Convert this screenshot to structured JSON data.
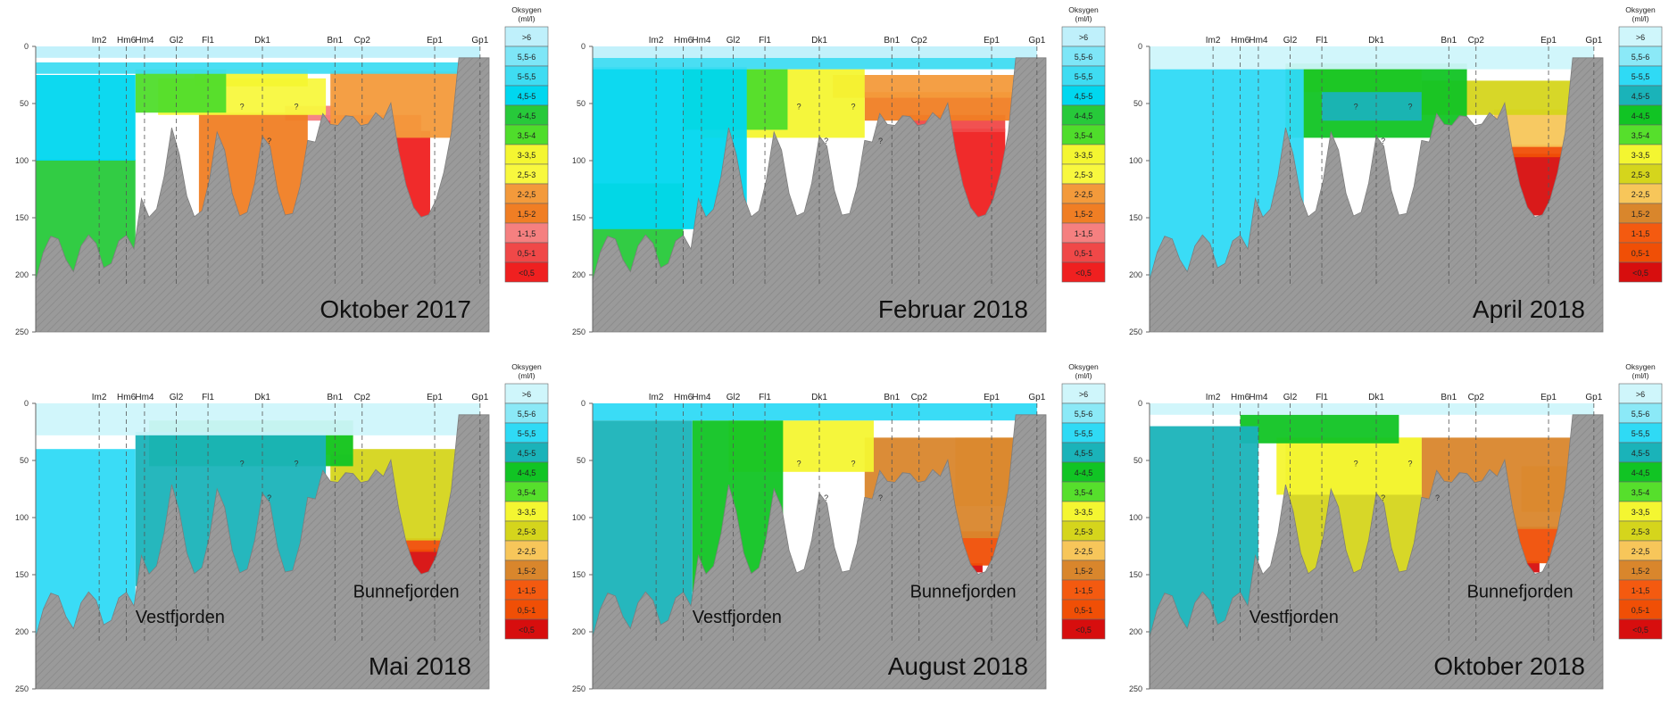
{
  "chart_data": [
    {
      "type": "other",
      "title": "Oktober 2017",
      "ylim": [
        0,
        250
      ],
      "y_ticks": [
        0,
        50,
        100,
        150,
        200,
        250
      ],
      "stations": [
        "Im2",
        "Hm6",
        "Hm4",
        "Gl2",
        "Fl1",
        "Dk1",
        "Bn1",
        "Cp2",
        "Ep1",
        "Gp1"
      ],
      "station_pos": [
        0.14,
        0.2,
        0.24,
        0.31,
        0.38,
        0.5,
        0.66,
        0.72,
        0.88,
        0.98
      ],
      "scale_lightblue": true,
      "legend_title": "Oksygen\n(ml/l)",
      "legend_classes": [
        ">6",
        "5,5-6",
        "5-5,5",
        "4,5-5",
        "4-4,5",
        "3,5-4",
        "3-3,5",
        "2,5-3",
        "2-2,5",
        "1,5-2",
        "1-1,5",
        "0,5-1",
        "<0,5"
      ],
      "legend_colors": [
        "#bff0fb",
        "#7ee6f7",
        "#3fdcf2",
        "#00d7ef",
        "#27c93a",
        "#4fdd2b",
        "#f4f631",
        "#f8f83e",
        "#f39a3b",
        "#f07e24",
        "#f58080",
        "#f04848",
        "#ef2020"
      ],
      "regions": [
        {
          "code": "<0,5",
          "x0": 0.67,
          "x1": 0.87,
          "y0": 74,
          "y1": 152,
          "color": "#ef2020"
        },
        {
          "code": "0,5-1",
          "x0": 0.64,
          "x1": 0.85,
          "y0": 60,
          "y1": 80,
          "color": "#f04848"
        },
        {
          "code": "1-1,5",
          "x0": 0.55,
          "x1": 0.66,
          "y0": 52,
          "y1": 65,
          "color": "#f58080"
        },
        {
          "code": "1,5-2",
          "x0": 0.36,
          "x1": 0.6,
          "y0": 58,
          "y1": 155,
          "color": "#f07e24"
        },
        {
          "code": "2-2,5",
          "x0": 0.65,
          "x1": 0.97,
          "y0": 22,
          "y1": 80,
          "color": "#f39a3b"
        },
        {
          "code": "2,5-3",
          "x0": 0.27,
          "x1": 0.64,
          "y0": 28,
          "y1": 60,
          "color": "#f8f83e"
        },
        {
          "code": "3-3,5",
          "x0": 0.35,
          "x1": 0.6,
          "y0": 20,
          "y1": 35,
          "color": "#f4f631"
        },
        {
          "code": "3,5-4",
          "x0": 0.22,
          "x1": 0.42,
          "y0": 20,
          "y1": 58,
          "color": "#4fdd2b"
        },
        {
          "code": "4-4,5",
          "x0": 0.0,
          "x1": 0.22,
          "y0": 99,
          "y1": 205,
          "color": "#27c93a"
        },
        {
          "code": "4,5-5",
          "x0": 0.0,
          "x1": 0.22,
          "y0": 25,
          "y1": 100,
          "color": "#00d7ef"
        },
        {
          "code": "5-5,5",
          "x0": 0.0,
          "x1": 0.98,
          "y0": 14,
          "y1": 24,
          "color": "#3fdcf2"
        },
        {
          "code": ">6",
          "x0": 0.0,
          "x1": 0.98,
          "y0": 0,
          "y1": 10,
          "color": "#bff0fb"
        }
      ],
      "question_marks": 3,
      "subtitles": []
    },
    {
      "type": "other",
      "title": "Februar 2018",
      "ylim": [
        0,
        250
      ],
      "y_ticks": [
        0,
        50,
        100,
        150,
        200,
        250
      ],
      "stations": [
        "Im2",
        "Hm6",
        "Hm4",
        "Gl2",
        "Fl1",
        "Dk1",
        "Bn1",
        "Cp2",
        "Ep1",
        "Gp1"
      ],
      "station_pos": [
        0.14,
        0.2,
        0.24,
        0.31,
        0.38,
        0.5,
        0.66,
        0.72,
        0.88,
        0.98
      ],
      "scale_lightblue": true,
      "legend_title": "Oksygen\n(ml/l)",
      "legend_classes": [
        ">6",
        "5,5-6",
        "5-5,5",
        "4,5-5",
        "4-4,5",
        "3,5-4",
        "3-3,5",
        "2,5-3",
        "2-2,5",
        "1,5-2",
        "1-1,5",
        "0,5-1",
        "<0,5"
      ],
      "legend_colors": [
        "#bff0fb",
        "#7ee6f7",
        "#3fdcf2",
        "#00d7ef",
        "#27c93a",
        "#4fdd2b",
        "#f4f631",
        "#f8f83e",
        "#f39a3b",
        "#f07e24",
        "#f58080",
        "#f04848",
        "#ef2020"
      ],
      "regions": [
        {
          "code": "<0,5",
          "x0": 0.69,
          "x1": 0.91,
          "y0": 72,
          "y1": 150,
          "color": "#ef2020"
        },
        {
          "code": "0,5-1",
          "x0": 0.69,
          "x1": 0.91,
          "y0": 60,
          "y1": 75,
          "color": "#f04848"
        },
        {
          "code": "1,5-2",
          "x0": 0.6,
          "x1": 0.96,
          "y0": 40,
          "y1": 65,
          "color": "#f07e24"
        },
        {
          "code": "2-2,5",
          "x0": 0.53,
          "x1": 0.96,
          "y0": 25,
          "y1": 45,
          "color": "#f39a3b"
        },
        {
          "code": "3-3,5",
          "x0": 0.24,
          "x1": 0.6,
          "y0": 20,
          "y1": 80,
          "color": "#f4f631"
        },
        {
          "code": "3,5-4",
          "x0": 0.2,
          "x1": 0.43,
          "y0": 20,
          "y1": 73,
          "color": "#4fdd2b"
        },
        {
          "code": "4-4,5",
          "x0": 0.0,
          "x1": 0.2,
          "y0": 120,
          "y1": 205,
          "color": "#27c93a"
        },
        {
          "code": "4,5-5",
          "x0": 0.0,
          "x1": 0.34,
          "y0": 18,
          "y1": 160,
          "color": "#00d7ef"
        },
        {
          "code": "5-5,5",
          "x0": 0.0,
          "x1": 0.98,
          "y0": 10,
          "y1": 20,
          "color": "#3fdcf2"
        },
        {
          "code": ">6",
          "x0": 0.0,
          "x1": 0.98,
          "y0": 0,
          "y1": 10,
          "color": "#bff0fb"
        }
      ],
      "question_marks": 4,
      "subtitles": []
    },
    {
      "type": "other",
      "title": "April 2018",
      "ylim": [
        0,
        250
      ],
      "y_ticks": [
        0,
        50,
        100,
        150,
        200,
        250
      ],
      "stations": [
        "Im2",
        "Hm6",
        "Hm4",
        "Gl2",
        "Fl1",
        "Dk1",
        "Bn1",
        "Cp2",
        "Ep1",
        "Gp1"
      ],
      "station_pos": [
        0.14,
        0.2,
        0.24,
        0.31,
        0.38,
        0.5,
        0.66,
        0.72,
        0.88,
        0.98
      ],
      "scale_lightblue": true,
      "legend_title": "Oksygen\n(ml/l)",
      "legend_classes": [
        ">6",
        "5,5-6",
        "5-5,5",
        "4,5-5",
        "4-4,5",
        "3,5-4",
        "3-3,5",
        "2,5-3",
        "2-2,5",
        "1,5-2",
        "1-1,5",
        "0,5-1",
        "<0,5"
      ],
      "legend_colors": [
        "#cff6fb",
        "#8be9f7",
        "#2fdaf5",
        "#1ab3b9",
        "#11c424",
        "#56df2c",
        "#f4f631",
        "#d5d51c",
        "#f7c65a",
        "#d9862c",
        "#f45a10",
        "#f04f06",
        "#d70e0e"
      ],
      "regions": [
        {
          "code": "<0,5",
          "x0": 0.79,
          "x1": 0.91,
          "y0": 94,
          "y1": 148,
          "color": "#d70e0e"
        },
        {
          "code": "0,5-1",
          "x0": 0.78,
          "x1": 0.92,
          "y0": 86,
          "y1": 97,
          "color": "#f04f06"
        },
        {
          "code": "2-2,5",
          "x0": 0.76,
          "x1": 0.95,
          "y0": 55,
          "y1": 88,
          "color": "#f7c65a"
        },
        {
          "code": "2,5-3",
          "x0": 0.6,
          "x1": 0.96,
          "y0": 30,
          "y1": 60,
          "color": "#d5d51c"
        },
        {
          "code": "3-3,5",
          "x0": 0.32,
          "x1": 0.6,
          "y0": 15,
          "y1": 40,
          "color": "#f4f631"
        },
        {
          "code": "4-4,5",
          "x0": 0.3,
          "x1": 0.7,
          "y0": 15,
          "y1": 80,
          "color": "#11c424"
        },
        {
          "code": "4,5-5",
          "x0": 0.38,
          "x1": 0.6,
          "y0": 40,
          "y1": 65,
          "color": "#1ab3b9"
        },
        {
          "code": "5-5,5",
          "x0": 0.0,
          "x1": 0.34,
          "y0": 20,
          "y1": 205,
          "color": "#2fdaf5"
        },
        {
          "code": ">6",
          "x0": 0.0,
          "x1": 0.98,
          "y0": 0,
          "y1": 20,
          "color": "#cff6fb"
        }
      ],
      "question_marks": 3,
      "subtitles": []
    },
    {
      "type": "other",
      "title": "Mai 2018",
      "ylim": [
        0,
        250
      ],
      "y_ticks": [
        0,
        50,
        100,
        150,
        200,
        250
      ],
      "stations": [
        "Im2",
        "Hm6",
        "Hm4",
        "Gl2",
        "Fl1",
        "Dk1",
        "Bn1",
        "Cp2",
        "Ep1",
        "Gp1"
      ],
      "station_pos": [
        0.14,
        0.2,
        0.24,
        0.31,
        0.38,
        0.5,
        0.66,
        0.72,
        0.88,
        0.98
      ],
      "scale_lightblue": true,
      "legend_title": "Oksygen\n(ml/l)",
      "legend_classes": [
        ">6",
        "5,5-6",
        "5-5,5",
        "4,5-5",
        "4-4,5",
        "3,5-4",
        "3-3,5",
        "2,5-3",
        "2-2,5",
        "1,5-2",
        "1-1,5",
        "0,5-1",
        "<0,5"
      ],
      "legend_colors": [
        "#cff6fb",
        "#8be9f7",
        "#2fdaf5",
        "#1ab3b9",
        "#11c424",
        "#56df2c",
        "#f4f631",
        "#d5d51c",
        "#f7c65a",
        "#d9862c",
        "#f45a10",
        "#f04f06",
        "#d70e0e"
      ],
      "regions": [
        {
          "code": "<0,5",
          "x0": 0.79,
          "x1": 0.91,
          "y0": 128,
          "y1": 152,
          "color": "#d70e0e"
        },
        {
          "code": "0,5-1",
          "x0": 0.79,
          "x1": 0.91,
          "y0": 118,
          "y1": 130,
          "color": "#f04f06"
        },
        {
          "code": "2,5-3",
          "x0": 0.65,
          "x1": 0.96,
          "y0": 40,
          "y1": 120,
          "color": "#d5d51c"
        },
        {
          "code": "3-3,5",
          "x0": 0.32,
          "x1": 0.7,
          "y0": 15,
          "y1": 45,
          "color": "#f4f631"
        },
        {
          "code": "4-4,5",
          "x0": 0.25,
          "x1": 0.7,
          "y0": 15,
          "y1": 55,
          "color": "#11c424"
        },
        {
          "code": "4,5-5",
          "x0": 0.22,
          "x1": 0.64,
          "y0": 25,
          "y1": 160,
          "color": "#1ab3b9"
        },
        {
          "code": "5-5,5",
          "x0": 0.0,
          "x1": 0.22,
          "y0": 40,
          "y1": 205,
          "color": "#2fdaf5"
        },
        {
          "code": ">6",
          "x0": 0.0,
          "x1": 0.98,
          "y0": 0,
          "y1": 28,
          "color": "#cff6fb"
        }
      ],
      "question_marks": 3,
      "subtitles": [
        "Vestfjorden",
        "Bunnefjorden"
      ]
    },
    {
      "type": "other",
      "title": "August 2018",
      "ylim": [
        0,
        250
      ],
      "y_ticks": [
        0,
        50,
        100,
        150,
        200,
        250
      ],
      "stations": [
        "Im2",
        "Hm6",
        "Hm4",
        "Gl2",
        "Fl1",
        "Dk1",
        "Bn1",
        "Cp2",
        "Ep1",
        "Gp1"
      ],
      "station_pos": [
        0.14,
        0.2,
        0.24,
        0.31,
        0.38,
        0.5,
        0.66,
        0.72,
        0.88,
        0.98
      ],
      "scale_lightblue": true,
      "legend_title": "Oksygen\n(ml/l)",
      "legend_classes": [
        ">6",
        "5,5-6",
        "5-5,5",
        "4,5-5",
        "4-4,5",
        "3,5-4",
        "3-3,5",
        "2,5-3",
        "2-2,5",
        "1,5-2",
        "1-1,5",
        "0,5-1",
        "<0,5"
      ],
      "legend_colors": [
        "#cff6fb",
        "#8be9f7",
        "#2fdaf5",
        "#1ab3b9",
        "#11c424",
        "#56df2c",
        "#f4f631",
        "#d5d51c",
        "#f7c65a",
        "#d9862c",
        "#f45a10",
        "#f04f06",
        "#d70e0e"
      ],
      "regions": [
        {
          "code": "<0,5",
          "x0": 0.8,
          "x1": 0.86,
          "y0": 140,
          "y1": 148,
          "color": "#d70e0e"
        },
        {
          "code": "0,5-1",
          "x0": 0.79,
          "x1": 0.91,
          "y0": 112,
          "y1": 142,
          "color": "#f04f06"
        },
        {
          "code": "2-2,5",
          "x0": 0.8,
          "x1": 0.93,
          "y0": 30,
          "y1": 90,
          "color": "#f7c65a"
        },
        {
          "code": "1,5-2",
          "x0": 0.6,
          "x1": 0.96,
          "y0": 30,
          "y1": 118,
          "color": "#d9862c"
        },
        {
          "code": "3-3,5",
          "x0": 0.3,
          "x1": 0.62,
          "y0": 15,
          "y1": 60,
          "color": "#f4f631"
        },
        {
          "code": "4-4,5",
          "x0": 0.22,
          "x1": 0.42,
          "y0": 15,
          "y1": 165,
          "color": "#11c424"
        },
        {
          "code": "4,5-5",
          "x0": 0.0,
          "x1": 0.22,
          "y0": 15,
          "y1": 205,
          "color": "#1ab3b9"
        },
        {
          "code": "5-5,5",
          "x0": 0.0,
          "x1": 0.98,
          "y0": 0,
          "y1": 15,
          "color": "#2fdaf5"
        }
      ],
      "question_marks": 4,
      "subtitles": [
        "Vestfjorden",
        "Bunnefjorden"
      ]
    },
    {
      "type": "other",
      "title": "Oktober 2018",
      "ylim": [
        0,
        250
      ],
      "y_ticks": [
        0,
        50,
        100,
        150,
        200,
        250
      ],
      "stations": [
        "Im2",
        "Hm6",
        "Hm4",
        "Gl2",
        "Fl1",
        "Dk1",
        "Bn1",
        "Cp2",
        "Ep1",
        "Gp1"
      ],
      "station_pos": [
        0.14,
        0.2,
        0.24,
        0.31,
        0.38,
        0.5,
        0.66,
        0.72,
        0.88,
        0.98
      ],
      "scale_lightblue": true,
      "legend_title": "Oksygen\n(ml/l)",
      "legend_classes": [
        ">6",
        "5,5-6",
        "5-5,5",
        "4,5-5",
        "4-4,5",
        "3,5-4",
        "3-3,5",
        "2,5-3",
        "2-2,5",
        "1,5-2",
        "1-1,5",
        "0,5-1",
        "<0,5"
      ],
      "legend_colors": [
        "#cff6fb",
        "#8be9f7",
        "#2fdaf5",
        "#1ab3b9",
        "#11c424",
        "#56df2c",
        "#f4f631",
        "#d5d51c",
        "#f7c65a",
        "#d9862c",
        "#f45a10",
        "#f04f06",
        "#d70e0e"
      ],
      "regions": [
        {
          "code": "<0,5",
          "x0": 0.8,
          "x1": 0.86,
          "y0": 138,
          "y1": 148,
          "color": "#d70e0e"
        },
        {
          "code": "0,5-1",
          "x0": 0.78,
          "x1": 0.92,
          "y0": 108,
          "y1": 140,
          "color": "#f04f06"
        },
        {
          "code": "2-2,5",
          "x0": 0.82,
          "x1": 0.96,
          "y0": 55,
          "y1": 95,
          "color": "#f7c65a"
        },
        {
          "code": "1,5-2",
          "x0": 0.6,
          "x1": 0.96,
          "y0": 30,
          "y1": 110,
          "color": "#d9862c"
        },
        {
          "code": "2,5-3",
          "x0": 0.3,
          "x1": 0.6,
          "y0": 30,
          "y1": 165,
          "color": "#d5d51c"
        },
        {
          "code": "3-3,5",
          "x0": 0.28,
          "x1": 0.6,
          "y0": 30,
          "y1": 80,
          "color": "#f4f631"
        },
        {
          "code": "4-4,5",
          "x0": 0.2,
          "x1": 0.55,
          "y0": 10,
          "y1": 35,
          "color": "#11c424"
        },
        {
          "code": "4,5-5",
          "x0": 0.0,
          "x1": 0.24,
          "y0": 20,
          "y1": 205,
          "color": "#1ab3b9"
        },
        {
          "code": ">6",
          "x0": 0.0,
          "x1": 0.98,
          "y0": 0,
          "y1": 10,
          "color": "#cff6fb"
        }
      ],
      "question_marks": 4,
      "subtitles": [
        "Vestfjorden",
        "Bunnefjorden"
      ]
    }
  ]
}
